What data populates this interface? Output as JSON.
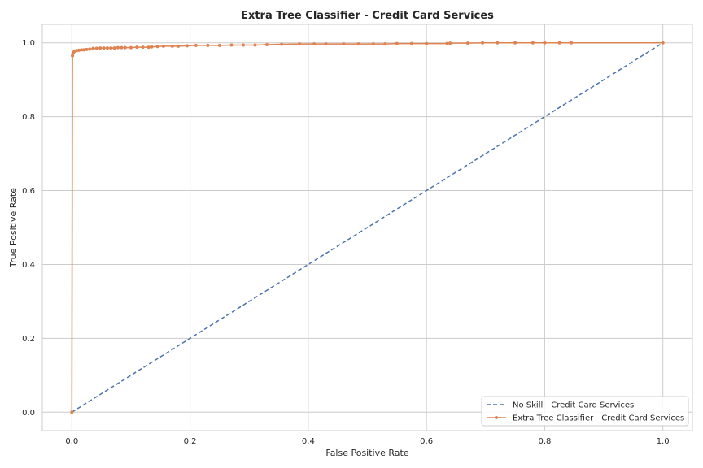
{
  "chart_data": {
    "type": "line",
    "title": "Extra Tree Classifier - Credit Card Services",
    "xlabel": "False Positive Rate",
    "ylabel": "True Positive Rate",
    "xlim": [
      -0.05,
      1.05
    ],
    "ylim": [
      -0.05,
      1.05
    ],
    "x_ticks": [
      "0.0",
      "0.2",
      "0.4",
      "0.6",
      "0.8",
      "1.0"
    ],
    "x_tick_values": [
      0.0,
      0.2,
      0.4,
      0.6,
      0.8,
      1.0
    ],
    "y_ticks": [
      "0.0",
      "0.2",
      "0.4",
      "0.6",
      "0.8",
      "1.0"
    ],
    "y_tick_values": [
      0.0,
      0.2,
      0.4,
      0.6,
      0.8,
      1.0
    ],
    "grid": true,
    "legend_position": "lower-right",
    "series": [
      {
        "name": "No Skill - Credit Card Services",
        "style": "dashed",
        "color": "#4c72b0",
        "x": [
          0.0,
          1.0
        ],
        "y": [
          0.0,
          1.0
        ]
      },
      {
        "name": "Extra Tree Classifier - Credit Card Services",
        "style": "solid-markers",
        "color": "#dd8452",
        "x": [
          0.0,
          0.001,
          0.002,
          0.003,
          0.005,
          0.008,
          0.012,
          0.016,
          0.02,
          0.025,
          0.03,
          0.036,
          0.042,
          0.048,
          0.054,
          0.06,
          0.066,
          0.072,
          0.078,
          0.084,
          0.09,
          0.1,
          0.11,
          0.12,
          0.13,
          0.135,
          0.145,
          0.155,
          0.17,
          0.18,
          0.195,
          0.21,
          0.23,
          0.25,
          0.27,
          0.29,
          0.31,
          0.33,
          0.355,
          0.385,
          0.41,
          0.43,
          0.46,
          0.485,
          0.51,
          0.53,
          0.55,
          0.575,
          0.6,
          0.635,
          0.64,
          0.67,
          0.695,
          0.72,
          0.75,
          0.78,
          0.8,
          0.825,
          0.845,
          1.0
        ],
        "y": [
          0.0,
          0.965,
          0.972,
          0.975,
          0.977,
          0.979,
          0.98,
          0.981,
          0.981,
          0.982,
          0.983,
          0.985,
          0.985,
          0.986,
          0.986,
          0.986,
          0.986,
          0.986,
          0.987,
          0.987,
          0.987,
          0.987,
          0.988,
          0.988,
          0.988,
          0.989,
          0.99,
          0.991,
          0.991,
          0.991,
          0.992,
          0.993,
          0.993,
          0.993,
          0.994,
          0.994,
          0.994,
          0.995,
          0.996,
          0.997,
          0.997,
          0.997,
          0.997,
          0.997,
          0.997,
          0.997,
          0.998,
          0.998,
          0.998,
          0.998,
          0.999,
          0.999,
          1.0,
          1.0,
          1.0,
          1.0,
          1.0,
          1.0,
          1.0,
          1.0
        ]
      }
    ]
  }
}
